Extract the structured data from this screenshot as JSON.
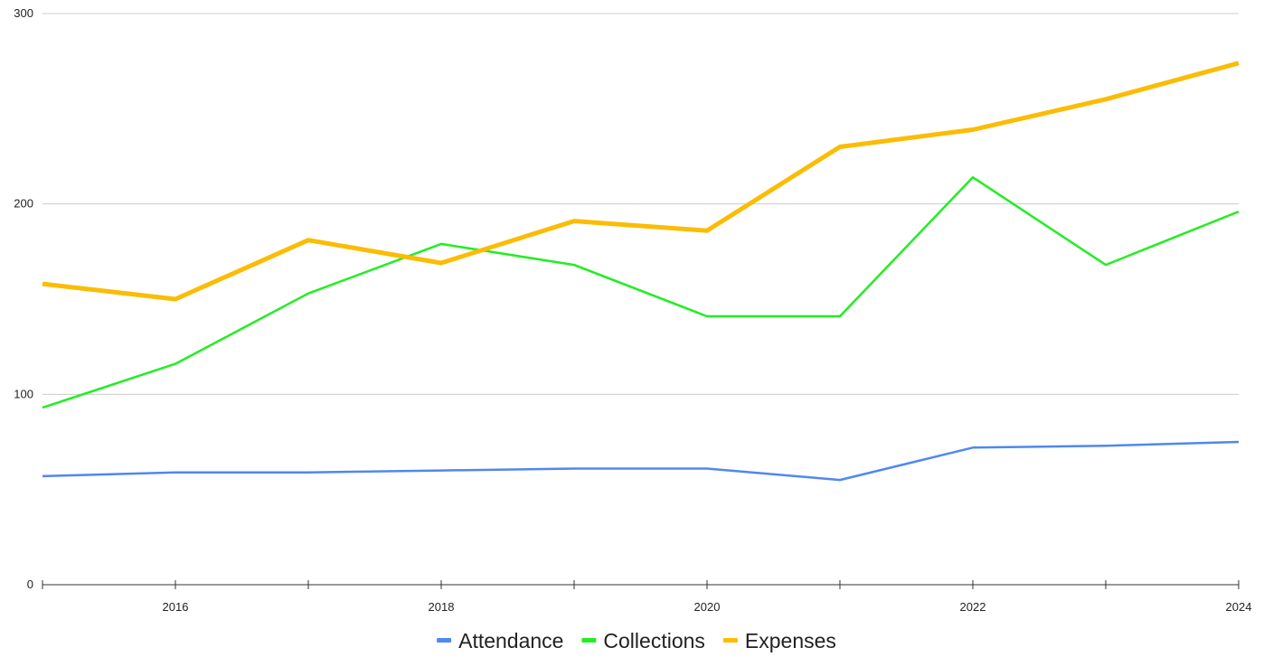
{
  "chart_data": {
    "type": "line",
    "x": [
      2015,
      2016,
      2017,
      2018,
      2019,
      2020,
      2021,
      2022,
      2023,
      2024
    ],
    "x_tick_labels": [
      "2016",
      "2018",
      "2020",
      "2022",
      "2024"
    ],
    "x_tick_values": [
      2016,
      2018,
      2020,
      2022,
      2024
    ],
    "xlim": [
      2015,
      2024
    ],
    "y_tick_labels": [
      "0",
      "100",
      "200",
      "300"
    ],
    "y_tick_values": [
      0,
      100,
      200,
      300
    ],
    "ylim": [
      0,
      300
    ],
    "grid": true,
    "legend_position": "bottom",
    "title": "",
    "xlabel": "",
    "ylabel": "",
    "series": [
      {
        "name": "Attendance",
        "color": "#4f88ef",
        "values": [
          57,
          59,
          59,
          60,
          61,
          61,
          55,
          72,
          73,
          75
        ]
      },
      {
        "name": "Collections",
        "color": "#22ee22",
        "values": [
          93,
          116,
          153,
          179,
          168,
          141,
          141,
          214,
          168,
          196
        ]
      },
      {
        "name": "Expenses",
        "color": "#fbbc04",
        "values": [
          158,
          150,
          181,
          169,
          191,
          186,
          230,
          239,
          255,
          274
        ]
      }
    ]
  }
}
